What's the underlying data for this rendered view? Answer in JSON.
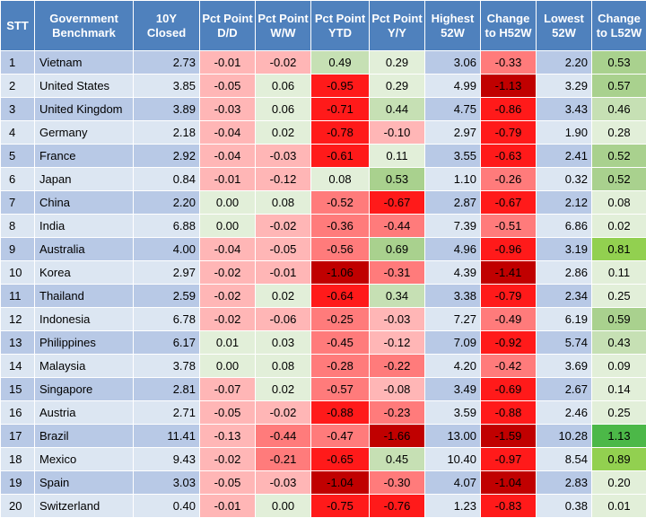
{
  "headers": [
    "STT",
    "Government Benchmark",
    "10Y Closed",
    "Pct Point D/D",
    "Pct Point W/W",
    "Pct Point YTD",
    "Pct Point Y/Y",
    "Highest 52W",
    "Change to H52W",
    "Lowest 52W",
    "Change to L52W"
  ],
  "colors": {
    "header_bg": "#4f81bd",
    "row_odd_bg": "#b8c9e6",
    "row_even_bg": "#dce6f2",
    "neg_light": "#ffb6b6",
    "neg_mid": "#ff7b7b",
    "neg_strong": "#ff1a1a",
    "neg_dark": "#c00000",
    "pos_light": "#e2efd9",
    "pos_mid": "#c6e0b4",
    "pos_strong": "#a9d18e",
    "pos_bright": "#92d050",
    "pos_max": "#4cb848"
  },
  "rows": [
    [
      "1",
      "Vietnam",
      "2.73",
      "-0.01",
      "-0.02",
      "0.49",
      "0.29",
      "3.06",
      "-0.33",
      "2.20",
      "0.53"
    ],
    [
      "2",
      "United States",
      "3.85",
      "-0.05",
      "0.06",
      "-0.95",
      "0.29",
      "4.99",
      "-1.13",
      "3.29",
      "0.57"
    ],
    [
      "3",
      "United Kingdom",
      "3.89",
      "-0.03",
      "0.06",
      "-0.71",
      "0.44",
      "4.75",
      "-0.86",
      "3.43",
      "0.46"
    ],
    [
      "4",
      "Germany",
      "2.18",
      "-0.04",
      "0.02",
      "-0.78",
      "-0.10",
      "2.97",
      "-0.79",
      "1.90",
      "0.28"
    ],
    [
      "5",
      "France",
      "2.92",
      "-0.04",
      "-0.03",
      "-0.61",
      "0.11",
      "3.55",
      "-0.63",
      "2.41",
      "0.52"
    ],
    [
      "6",
      "Japan",
      "0.84",
      "-0.01",
      "-0.12",
      "0.08",
      "0.53",
      "1.10",
      "-0.26",
      "0.32",
      "0.52"
    ],
    [
      "7",
      "China",
      "2.20",
      "0.00",
      "0.08",
      "-0.52",
      "-0.67",
      "2.87",
      "-0.67",
      "2.12",
      "0.08"
    ],
    [
      "8",
      "India",
      "6.88",
      "0.00",
      "-0.02",
      "-0.36",
      "-0.44",
      "7.39",
      "-0.51",
      "6.86",
      "0.02"
    ],
    [
      "9",
      "Australia",
      "4.00",
      "-0.04",
      "-0.05",
      "-0.56",
      "0.69",
      "4.96",
      "-0.96",
      "3.19",
      "0.81"
    ],
    [
      "10",
      "Korea",
      "2.97",
      "-0.02",
      "-0.01",
      "-1.06",
      "-0.31",
      "4.39",
      "-1.41",
      "2.86",
      "0.11"
    ],
    [
      "11",
      "Thailand",
      "2.59",
      "-0.02",
      "0.02",
      "-0.64",
      "0.34",
      "3.38",
      "-0.79",
      "2.34",
      "0.25"
    ],
    [
      "12",
      "Indonesia",
      "6.78",
      "-0.02",
      "-0.06",
      "-0.25",
      "-0.03",
      "7.27",
      "-0.49",
      "6.19",
      "0.59"
    ],
    [
      "13",
      "Philippines",
      "6.17",
      "0.01",
      "0.03",
      "-0.45",
      "-0.12",
      "7.09",
      "-0.92",
      "5.74",
      "0.43"
    ],
    [
      "14",
      "Malaysia",
      "3.78",
      "0.00",
      "0.08",
      "-0.28",
      "-0.22",
      "4.20",
      "-0.42",
      "3.69",
      "0.09"
    ],
    [
      "15",
      "Singapore",
      "2.81",
      "-0.07",
      "0.02",
      "-0.57",
      "-0.08",
      "3.49",
      "-0.69",
      "2.67",
      "0.14"
    ],
    [
      "16",
      "Austria",
      "2.71",
      "-0.05",
      "-0.02",
      "-0.88",
      "-0.23",
      "3.59",
      "-0.88",
      "2.46",
      "0.25"
    ],
    [
      "17",
      "Brazil",
      "11.41",
      "-0.13",
      "-0.44",
      "-0.47",
      "-1.66",
      "13.00",
      "-1.59",
      "10.28",
      "1.13"
    ],
    [
      "18",
      "Mexico",
      "9.43",
      "-0.02",
      "-0.21",
      "-0.65",
      "0.45",
      "10.40",
      "-0.97",
      "8.54",
      "0.89"
    ],
    [
      "19",
      "Spain",
      "3.03",
      "-0.05",
      "-0.03",
      "-1.04",
      "-0.30",
      "4.07",
      "-1.04",
      "2.83",
      "0.20"
    ],
    [
      "20",
      "Switzerland",
      "0.40",
      "-0.01",
      "0.00",
      "-0.75",
      "-0.76",
      "1.23",
      "-0.83",
      "0.38",
      "0.01"
    ]
  ]
}
